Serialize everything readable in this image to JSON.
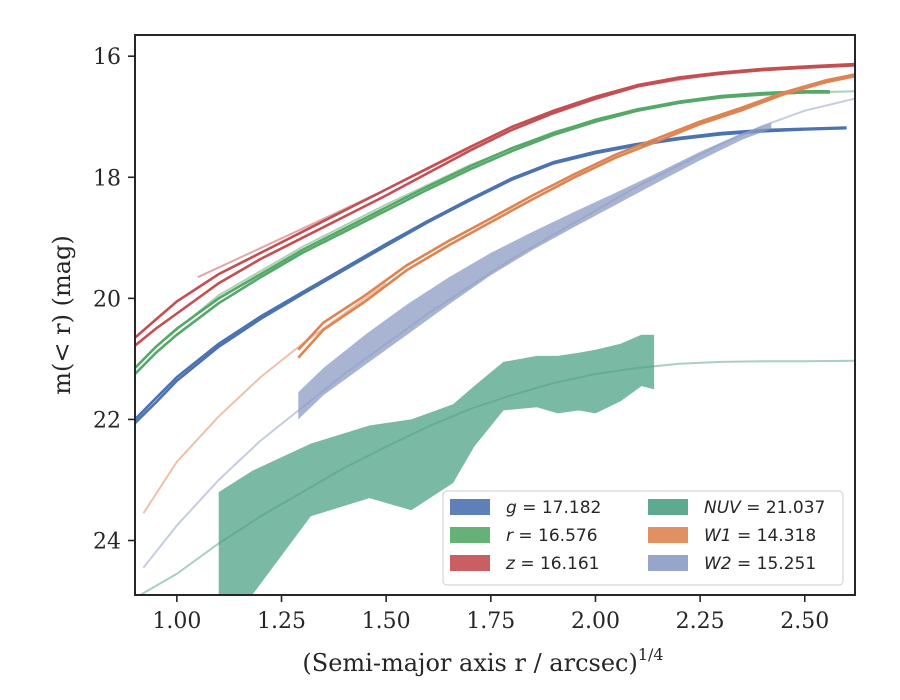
{
  "chart_data": {
    "type": "line",
    "xlabel": "(Semi-major axis r / arcsec)",
    "xlabel_superscript": "1/4",
    "ylabel": "m(< r) (mag)",
    "xlim": [
      0.9,
      2.62
    ],
    "ylim": [
      24.9,
      15.65
    ],
    "y_inverted": true,
    "grid": false,
    "x_ticks": [
      1.0,
      1.25,
      1.5,
      1.75,
      2.0,
      2.25,
      2.5
    ],
    "x_tick_labels": [
      "1.00",
      "1.25",
      "1.50",
      "1.75",
      "2.00",
      "2.25",
      "2.50"
    ],
    "y_ticks": [
      16,
      18,
      20,
      22,
      24
    ],
    "y_tick_labels": [
      "16",
      "18",
      "20",
      "22",
      "24"
    ],
    "legend_position": "lower-right",
    "series": [
      {
        "name": "g = 17.182",
        "legend_symbol": "g",
        "legend_value": "17.182",
        "color": "#4c72b0",
        "x": [
          0.9,
          0.95,
          1.0,
          1.1,
          1.2,
          1.3,
          1.4,
          1.5,
          1.6,
          1.7,
          1.8,
          1.9,
          2.0,
          2.1,
          2.2,
          2.3,
          2.4,
          2.5,
          2.6
        ],
        "y": [
          22.0,
          21.65,
          21.3,
          20.75,
          20.3,
          19.9,
          19.5,
          19.1,
          18.72,
          18.36,
          18.02,
          17.75,
          17.58,
          17.45,
          17.35,
          17.27,
          17.22,
          17.2,
          17.18
        ],
        "band_x": [
          0.9,
          0.95,
          1.0,
          1.1,
          1.2,
          1.3,
          1.4,
          1.5,
          1.6,
          1.7,
          1.8,
          1.9,
          2.0,
          2.1,
          2.2,
          2.3,
          2.4,
          2.5,
          2.6
        ],
        "band_y": [
          22.06,
          21.72,
          21.36,
          20.8,
          20.34,
          19.93,
          19.53,
          19.13,
          18.74,
          18.38,
          18.04,
          17.77,
          17.6,
          17.47,
          17.37,
          17.29,
          17.24,
          17.21,
          17.19
        ],
        "model_x": [],
        "model_y": []
      },
      {
        "name": "r = 16.576",
        "legend_symbol": "r",
        "legend_value": "16.576",
        "color": "#55a868",
        "x": [
          0.9,
          0.95,
          1.0,
          1.1,
          1.2,
          1.3,
          1.4,
          1.5,
          1.6,
          1.7,
          1.8,
          1.9,
          2.0,
          2.1,
          2.2,
          2.3,
          2.4,
          2.5,
          2.56
        ],
        "y": [
          21.15,
          20.8,
          20.5,
          20.0,
          19.6,
          19.2,
          18.85,
          18.5,
          18.15,
          17.82,
          17.52,
          17.27,
          17.05,
          16.88,
          16.75,
          16.66,
          16.61,
          16.58,
          16.58
        ],
        "band_x": [
          0.9,
          0.95,
          1.0,
          1.1,
          1.2,
          1.3,
          1.4,
          1.5,
          1.6,
          1.7,
          1.8,
          1.9,
          2.0,
          2.1,
          2.2,
          2.3,
          2.4,
          2.5,
          2.56
        ],
        "band_y": [
          21.25,
          20.9,
          20.6,
          20.08,
          19.65,
          19.25,
          18.9,
          18.55,
          18.2,
          17.87,
          17.57,
          17.3,
          17.08,
          16.9,
          16.77,
          16.68,
          16.63,
          16.6,
          16.6
        ],
        "model_x": [
          0.95,
          1.1,
          1.3,
          1.5,
          1.7,
          1.9,
          2.1,
          2.3,
          2.5,
          2.62
        ],
        "model_y": [
          20.8,
          19.95,
          19.15,
          18.45,
          17.8,
          17.25,
          16.87,
          16.68,
          16.6,
          16.58
        ]
      },
      {
        "name": "z = 16.161",
        "legend_symbol": "z",
        "legend_value": "16.161",
        "color": "#c44e52",
        "x": [
          0.9,
          0.95,
          1.0,
          1.1,
          1.2,
          1.3,
          1.4,
          1.5,
          1.6,
          1.7,
          1.8,
          1.9,
          2.0,
          2.1,
          2.2,
          2.3,
          2.4,
          2.5,
          2.62
        ],
        "y": [
          20.65,
          20.35,
          20.05,
          19.6,
          19.25,
          18.9,
          18.55,
          18.2,
          17.85,
          17.5,
          17.17,
          16.9,
          16.67,
          16.48,
          16.35,
          16.27,
          16.21,
          16.17,
          16.13
        ],
        "band_x": [
          0.9,
          0.95,
          1.0,
          1.1,
          1.2,
          1.3,
          1.4,
          1.5,
          1.6,
          1.7,
          1.8,
          1.9,
          2.0,
          2.1,
          2.2,
          2.3,
          2.4,
          2.5,
          2.62
        ],
        "band_y": [
          20.78,
          20.5,
          20.25,
          19.75,
          19.35,
          19.0,
          18.65,
          18.3,
          17.93,
          17.56,
          17.22,
          16.94,
          16.7,
          16.5,
          16.37,
          16.29,
          16.23,
          16.19,
          16.15
        ],
        "model_x": [
          1.05,
          1.3,
          1.5,
          1.7,
          1.9,
          2.1,
          2.3,
          2.5
        ],
        "model_y": [
          19.65,
          18.85,
          18.2,
          17.52,
          16.92,
          16.5,
          16.28,
          16.18
        ]
      },
      {
        "name": "NUV = 21.037",
        "legend_symbol": "NUV",
        "legend_value": "21.037",
        "color": "#4da184",
        "x": [
          1.1,
          1.2,
          1.3,
          1.4,
          1.5,
          1.6,
          1.7,
          1.8,
          1.9,
          2.0,
          2.1,
          2.14
        ],
        "y": [
          24.2,
          23.6,
          23.05,
          22.75,
          22.7,
          22.45,
          21.95,
          21.4,
          21.15,
          21.15,
          21.1,
          21.05
        ],
        "band_x": [
          1.1,
          1.18,
          1.32,
          1.46,
          1.56,
          1.66,
          1.71,
          1.78,
          1.86,
          1.91,
          1.96,
          2.0,
          2.06,
          2.11,
          2.14
        ],
        "band_upper": [
          23.2,
          22.85,
          22.4,
          22.1,
          22.0,
          21.75,
          21.45,
          21.05,
          20.95,
          20.95,
          20.9,
          20.85,
          20.75,
          20.6,
          20.6
        ],
        "band_lower": [
          24.9,
          24.9,
          23.6,
          23.3,
          23.5,
          23.05,
          22.45,
          21.85,
          21.8,
          21.9,
          21.85,
          21.9,
          21.7,
          21.45,
          21.5
        ],
        "model_x": [
          0.9,
          1.0,
          1.1,
          1.2,
          1.3,
          1.4,
          1.5,
          1.6,
          1.7,
          1.8,
          1.9,
          2.0,
          2.1,
          2.2,
          2.3,
          2.4,
          2.5,
          2.62
        ],
        "model_y": [
          24.95,
          24.55,
          24.05,
          23.6,
          23.2,
          22.8,
          22.45,
          22.12,
          21.83,
          21.6,
          21.4,
          21.25,
          21.15,
          21.08,
          21.05,
          21.04,
          21.04,
          21.03
        ]
      },
      {
        "name": "W1 = 14.318",
        "legend_symbol": "W1",
        "legend_value": "14.318",
        "color": "#dd8452",
        "x": [
          1.29,
          1.35,
          1.45,
          1.55,
          1.65,
          1.75,
          1.85,
          1.95,
          2.05,
          2.15,
          2.25,
          2.35,
          2.45,
          2.55,
          2.62
        ],
        "y": [
          20.85,
          20.4,
          19.95,
          19.45,
          19.05,
          18.68,
          18.3,
          17.95,
          17.62,
          17.35,
          17.08,
          16.85,
          16.6,
          16.4,
          16.3
        ],
        "band_x": [
          1.29,
          1.35,
          1.45,
          1.55,
          1.65,
          1.75,
          1.85,
          1.95,
          2.05,
          2.15,
          2.25,
          2.35,
          2.45,
          2.55,
          2.62
        ],
        "band_y": [
          20.98,
          20.52,
          20.05,
          19.53,
          19.12,
          18.74,
          18.36,
          18.0,
          17.67,
          17.4,
          17.12,
          16.89,
          16.63,
          16.43,
          16.33
        ],
        "model_x": [
          0.92,
          1.0,
          1.1,
          1.2,
          1.3,
          1.4,
          1.5
        ],
        "model_y": [
          23.55,
          22.7,
          21.95,
          21.3,
          20.75,
          20.25,
          19.75
        ]
      },
      {
        "name": "W2 = 15.251",
        "legend_symbol": "W2",
        "legend_value": "15.251",
        "color": "#8c9bc4",
        "x": [
          1.29,
          1.35,
          1.45,
          1.55,
          1.65,
          1.75,
          1.85,
          1.95,
          2.05,
          2.15,
          2.25,
          2.35,
          2.42
        ],
        "y": [
          21.75,
          21.35,
          20.85,
          20.35,
          19.9,
          19.45,
          19.05,
          18.7,
          18.35,
          18.0,
          17.65,
          17.32,
          17.15
        ],
        "band_x": [
          1.29,
          1.35,
          1.45,
          1.55,
          1.65,
          1.75,
          1.85,
          1.95,
          2.05,
          2.15,
          2.25,
          2.35,
          2.42
        ],
        "band_upper": [
          21.55,
          21.15,
          20.6,
          20.1,
          19.65,
          19.25,
          18.9,
          18.57,
          18.25,
          17.92,
          17.58,
          17.27,
          17.1
        ],
        "band_lower": [
          22.0,
          21.6,
          21.1,
          20.6,
          20.1,
          19.62,
          19.2,
          18.82,
          18.45,
          18.08,
          17.72,
          17.38,
          17.2
        ],
        "model_x": [
          0.92,
          1.0,
          1.1,
          1.2,
          1.3,
          1.4,
          1.5,
          1.6,
          1.7,
          1.8,
          1.9,
          2.0,
          2.1,
          2.2,
          2.3,
          2.4,
          2.5,
          2.62
        ],
        "model_y": [
          24.45,
          23.75,
          23.0,
          22.35,
          21.8,
          21.25,
          20.75,
          20.25,
          19.8,
          19.35,
          18.95,
          18.55,
          18.15,
          17.8,
          17.45,
          17.15,
          16.9,
          16.7
        ]
      }
    ]
  }
}
